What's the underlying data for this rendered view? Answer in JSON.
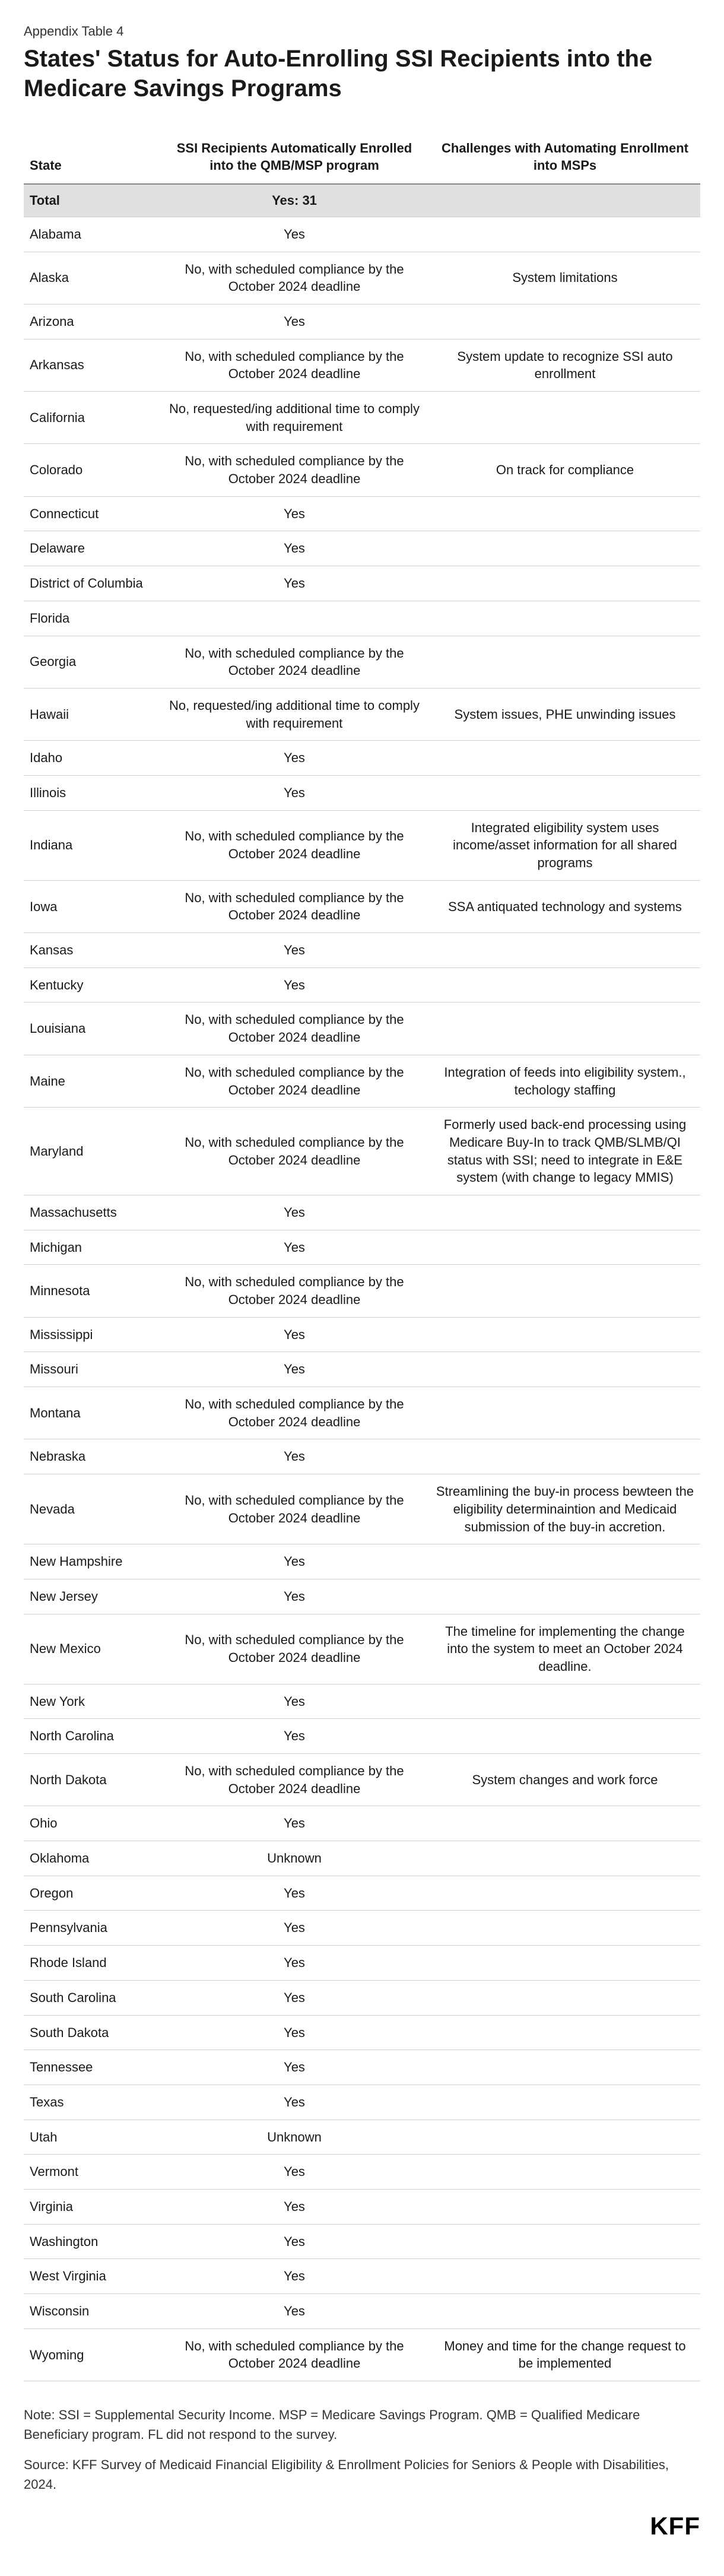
{
  "eyebrow": "Appendix Table 4",
  "title": "States' Status for Auto-Enrolling SSI Recipients into the Medicare Savings Programs",
  "columns": {
    "state": "State",
    "auto": "SSI Recipients Automatically Enrolled into the QMB/MSP program",
    "challenges": "Challenges with Automating Enrollment into MSPs"
  },
  "total": {
    "label": "Total",
    "value": "Yes: 31"
  },
  "rows": [
    {
      "state": "Alabama",
      "auto": "Yes",
      "ch": ""
    },
    {
      "state": "Alaska",
      "auto": "No, with scheduled compliance by the October 2024 deadline",
      "ch": "System limitations"
    },
    {
      "state": "Arizona",
      "auto": "Yes",
      "ch": ""
    },
    {
      "state": "Arkansas",
      "auto": "No, with scheduled compliance by the October 2024 deadline",
      "ch": "System update to recognize SSI auto enrollment"
    },
    {
      "state": "California",
      "auto": "No, requested/ing additional time to comply with requirement",
      "ch": ""
    },
    {
      "state": "Colorado",
      "auto": "No, with scheduled compliance by the October 2024 deadline",
      "ch": "On track for compliance"
    },
    {
      "state": "Connecticut",
      "auto": "Yes",
      "ch": ""
    },
    {
      "state": "Delaware",
      "auto": "Yes",
      "ch": ""
    },
    {
      "state": "District of Columbia",
      "auto": "Yes",
      "ch": ""
    },
    {
      "state": "Florida",
      "auto": "",
      "ch": ""
    },
    {
      "state": "Georgia",
      "auto": "No, with scheduled compliance by the October 2024 deadline",
      "ch": ""
    },
    {
      "state": "Hawaii",
      "auto": "No, requested/ing additional time to comply with requirement",
      "ch": "System issues, PHE unwinding issues"
    },
    {
      "state": "Idaho",
      "auto": "Yes",
      "ch": ""
    },
    {
      "state": "Illinois",
      "auto": "Yes",
      "ch": ""
    },
    {
      "state": "Indiana",
      "auto": "No, with scheduled compliance by the October 2024 deadline",
      "ch": "Integrated eligibility system uses income/asset information for all shared programs"
    },
    {
      "state": "Iowa",
      "auto": "No, with scheduled compliance by the October 2024 deadline",
      "ch": "SSA antiquated technology and systems"
    },
    {
      "state": "Kansas",
      "auto": "Yes",
      "ch": ""
    },
    {
      "state": "Kentucky",
      "auto": "Yes",
      "ch": ""
    },
    {
      "state": "Louisiana",
      "auto": "No, with scheduled compliance by the October 2024 deadline",
      "ch": ""
    },
    {
      "state": "Maine",
      "auto": "No, with scheduled compliance by the October 2024 deadline",
      "ch": "Integration of feeds into eligibility system., techology staffing"
    },
    {
      "state": "Maryland",
      "auto": "No, with scheduled compliance by the October 2024 deadline",
      "ch": "Formerly used back-end processing using Medicare Buy-In to track QMB/SLMB/QI status with SSI; need to integrate in E&E system (with change to legacy MMIS)"
    },
    {
      "state": "Massachusetts",
      "auto": "Yes",
      "ch": ""
    },
    {
      "state": "Michigan",
      "auto": "Yes",
      "ch": ""
    },
    {
      "state": "Minnesota",
      "auto": "No, with scheduled compliance by the October 2024 deadline",
      "ch": ""
    },
    {
      "state": "Mississippi",
      "auto": "Yes",
      "ch": ""
    },
    {
      "state": "Missouri",
      "auto": "Yes",
      "ch": ""
    },
    {
      "state": "Montana",
      "auto": "No, with scheduled compliance by the October 2024 deadline",
      "ch": ""
    },
    {
      "state": "Nebraska",
      "auto": "Yes",
      "ch": ""
    },
    {
      "state": "Nevada",
      "auto": "No, with scheduled compliance by the October 2024 deadline",
      "ch": "Streamlining the buy-in process bewteen the eligibility determinaintion and Medicaid submission of the buy-in accretion."
    },
    {
      "state": "New Hampshire",
      "auto": "Yes",
      "ch": ""
    },
    {
      "state": "New Jersey",
      "auto": "Yes",
      "ch": ""
    },
    {
      "state": "New Mexico",
      "auto": "No, with scheduled compliance by the October 2024 deadline",
      "ch": "The timeline for implementing the change into the system to meet an October 2024 deadline."
    },
    {
      "state": "New York",
      "auto": "Yes",
      "ch": ""
    },
    {
      "state": "North Carolina",
      "auto": "Yes",
      "ch": ""
    },
    {
      "state": "North Dakota",
      "auto": "No, with scheduled compliance by the October 2024 deadline",
      "ch": "System changes and work force"
    },
    {
      "state": "Ohio",
      "auto": "Yes",
      "ch": ""
    },
    {
      "state": "Oklahoma",
      "auto": "Unknown",
      "ch": ""
    },
    {
      "state": "Oregon",
      "auto": "Yes",
      "ch": ""
    },
    {
      "state": "Pennsylvania",
      "auto": "Yes",
      "ch": ""
    },
    {
      "state": "Rhode Island",
      "auto": "Yes",
      "ch": ""
    },
    {
      "state": "South Carolina",
      "auto": "Yes",
      "ch": ""
    },
    {
      "state": "South Dakota",
      "auto": "Yes",
      "ch": ""
    },
    {
      "state": "Tennessee",
      "auto": "Yes",
      "ch": ""
    },
    {
      "state": "Texas",
      "auto": "Yes",
      "ch": ""
    },
    {
      "state": "Utah",
      "auto": "Unknown",
      "ch": ""
    },
    {
      "state": "Vermont",
      "auto": "Yes",
      "ch": ""
    },
    {
      "state": "Virginia",
      "auto": "Yes",
      "ch": ""
    },
    {
      "state": "Washington",
      "auto": "Yes",
      "ch": ""
    },
    {
      "state": "West Virginia",
      "auto": "Yes",
      "ch": ""
    },
    {
      "state": "Wisconsin",
      "auto": "Yes",
      "ch": ""
    },
    {
      "state": "Wyoming",
      "auto": "No, with scheduled compliance by the October 2024 deadline",
      "ch": "Money and time for the change request to be implemented"
    }
  ],
  "note": "Note: SSI = Supplemental Security Income. MSP = Medicare Savings Program. QMB = Qualified Medicare Beneficiary program. FL did not respond to the survey.",
  "source": "Source: KFF Survey of Medicaid Financial Eligibility & Enrollment Policies for Seniors & People with Disabilities, 2024.",
  "logo": "KFF",
  "style": {
    "background": "#ffffff",
    "text_color": "#1a1a1a",
    "total_bg": "#e0e0e0",
    "border_color": "#d0d0d0",
    "header_border": "#888888",
    "title_fontsize": 40,
    "body_fontsize": 22
  }
}
